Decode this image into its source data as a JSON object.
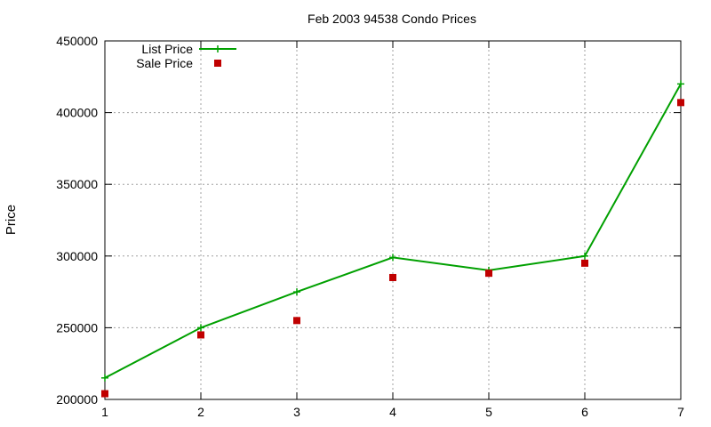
{
  "chart_data": {
    "type": "line",
    "title": "Feb 2003 94538 Condo Prices",
    "xlabel": "",
    "ylabel": "Price",
    "xlim": [
      1,
      7
    ],
    "ylim": [
      200000,
      450000
    ],
    "x_ticks": [
      1,
      2,
      3,
      4,
      5,
      6,
      7
    ],
    "y_ticks": [
      200000,
      250000,
      300000,
      350000,
      400000,
      450000
    ],
    "grid": true,
    "legend_position": "top-left",
    "series": [
      {
        "name": "List Price",
        "style": "line-with-plus-markers",
        "color": "#00a000",
        "x": [
          1,
          2,
          3,
          4,
          5,
          6,
          7
        ],
        "values": [
          215000,
          250000,
          275000,
          299000,
          290000,
          300000,
          420000
        ]
      },
      {
        "name": "Sale Price",
        "style": "square-markers",
        "color": "#c00000",
        "x": [
          1,
          2,
          3,
          4,
          5,
          6,
          7
        ],
        "values": [
          204000,
          245000,
          255000,
          285000,
          288000,
          295000,
          407000
        ]
      }
    ]
  }
}
